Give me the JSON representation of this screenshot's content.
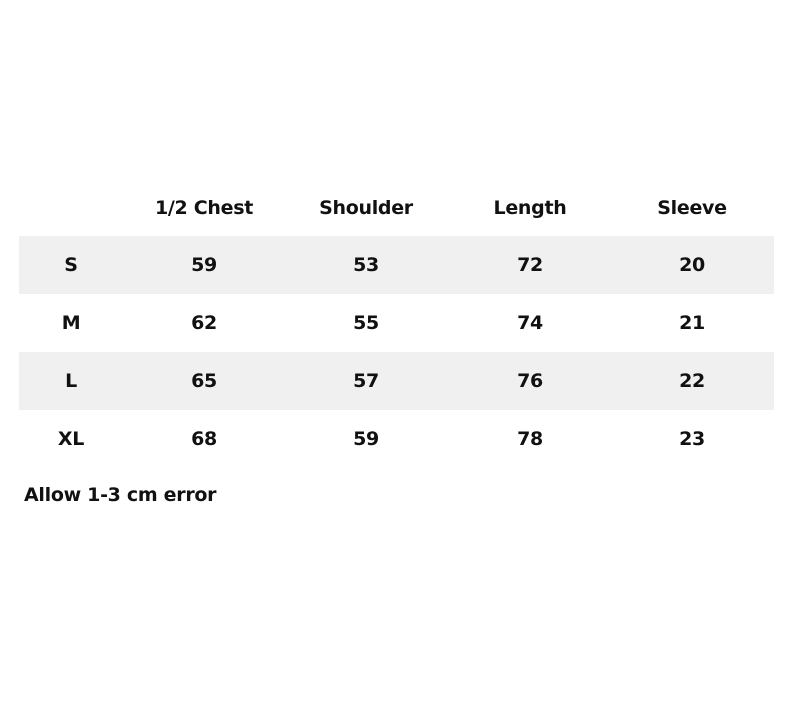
{
  "table": {
    "headers": [
      "",
      "1/2 Chest",
      "Shoulder",
      "Length",
      "Sleeve"
    ],
    "rows": [
      [
        "S",
        "59",
        "53",
        "72",
        "20"
      ],
      [
        "M",
        "62",
        "55",
        "74",
        "21"
      ],
      [
        "L",
        "65",
        "57",
        "76",
        "22"
      ],
      [
        "XL",
        "68",
        "59",
        "78",
        "23"
      ]
    ],
    "stripe_color": "#f0f0f0"
  },
  "note": "Allow 1-3 cm error"
}
